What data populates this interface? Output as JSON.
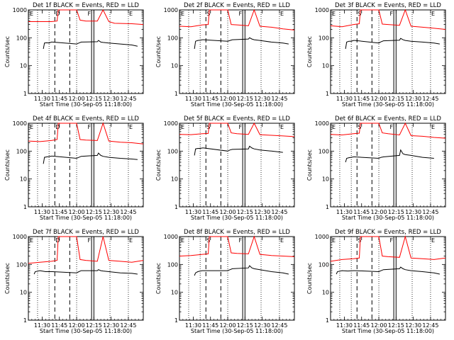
{
  "figure": {
    "xlabel": "Start Time (30-Sep-05 11:18:00)",
    "ylabel": "Counts/sec",
    "x_tick_labels": [
      "11:30",
      "11:45",
      "12:00",
      "12:15",
      "12:30",
      "12:45"
    ],
    "y_tick_labels": [
      "1",
      "10",
      "100",
      "1000"
    ],
    "event_labels": {
      "first_marker": "D",
      "second_marker": "F",
      "third_marker": "E",
      "start_marker": "E"
    },
    "colors": {
      "events": "#000000",
      "lld": "#ff0000"
    }
  },
  "chart_data": [
    {
      "type": "line",
      "title": "Det 1f BLACK = Events, RED = LLD",
      "detector": "1f",
      "first_marker": "D",
      "xlim_minutes": [
        0,
        100
      ],
      "ylim": [
        1,
        1000
      ],
      "yscale": "log",
      "series": [
        {
          "name": "LLD",
          "color": "#ff0000",
          "x": [
            0,
            20,
            25,
            26,
            28,
            42,
            45,
            50,
            60,
            65,
            70,
            75,
            90,
            100
          ],
          "values": [
            380,
            380,
            400,
            1000,
            1000,
            1000,
            430,
            400,
            400,
            1000,
            380,
            330,
            320,
            300
          ]
        },
        {
          "name": "Events",
          "color": "#000000",
          "x": [
            13,
            14,
            16,
            18,
            20,
            21,
            42,
            44,
            46,
            60,
            61,
            63,
            65,
            70,
            80,
            90,
            95
          ],
          "values": [
            40,
            65,
            66,
            65,
            70,
            70,
            60,
            65,
            70,
            72,
            80,
            70,
            68,
            65,
            60,
            55,
            50
          ]
        }
      ],
      "vlines_dotted": [
        8,
        18,
        42,
        71,
        87
      ],
      "vlines_dashed": [
        23,
        36
      ],
      "vlines_solid": [
        55,
        57
      ]
    },
    {
      "type": "line",
      "title": "Det 2f BLACK = Events, RED = LLD",
      "detector": "2f",
      "first_marker": "S",
      "xlim_minutes": [
        0,
        100
      ],
      "ylim": [
        1,
        1000
      ],
      "yscale": "log",
      "series": [
        {
          "name": "LLD",
          "color": "#ff0000",
          "x": [
            0,
            10,
            20,
            25,
            26,
            28,
            42,
            45,
            50,
            60,
            65,
            70,
            80,
            90,
            100
          ],
          "values": [
            260,
            250,
            290,
            300,
            1000,
            1000,
            1000,
            300,
            290,
            270,
            1000,
            260,
            240,
            210,
            190
          ]
        },
        {
          "name": "Events",
          "color": "#000000",
          "x": [
            13,
            14,
            16,
            18,
            20,
            21,
            42,
            44,
            46,
            60,
            61,
            63,
            65,
            70,
            80,
            90,
            95
          ],
          "values": [
            40,
            75,
            80,
            82,
            85,
            85,
            75,
            80,
            85,
            90,
            100,
            90,
            85,
            80,
            70,
            65,
            60
          ]
        }
      ],
      "vlines_dotted": [
        8,
        18,
        42,
        71,
        87
      ],
      "vlines_dashed": [
        23,
        36
      ],
      "vlines_solid": [
        55,
        57
      ]
    },
    {
      "type": "line",
      "title": "Det 3f BLACK = Events, RED = LLD",
      "detector": "3f",
      "first_marker": "S",
      "xlim_minutes": [
        0,
        100
      ],
      "ylim": [
        1,
        1000
      ],
      "yscale": "log",
      "series": [
        {
          "name": "LLD",
          "color": "#ff0000",
          "x": [
            0,
            10,
            20,
            25,
            26,
            28,
            42,
            45,
            50,
            60,
            65,
            70,
            80,
            90,
            100
          ],
          "values": [
            270,
            250,
            300,
            320,
            1000,
            1000,
            1000,
            310,
            300,
            280,
            1000,
            260,
            240,
            220,
            200
          ]
        },
        {
          "name": "Events",
          "color": "#000000",
          "x": [
            13,
            14,
            16,
            18,
            20,
            21,
            42,
            44,
            46,
            60,
            61,
            63,
            65,
            70,
            80,
            90,
            95
          ],
          "values": [
            40,
            70,
            75,
            75,
            80,
            80,
            65,
            72,
            78,
            82,
            95,
            85,
            80,
            75,
            70,
            65,
            60
          ]
        }
      ],
      "vlines_dotted": [
        8,
        18,
        42,
        71,
        87
      ],
      "vlines_dashed": [
        23,
        36
      ],
      "vlines_solid": [
        55,
        57
      ]
    },
    {
      "type": "line",
      "title": "Det 4f BLACK = Events, RED = LLD",
      "detector": "4f",
      "first_marker": "D",
      "xlim_minutes": [
        0,
        100
      ],
      "ylim": [
        1,
        1000
      ],
      "yscale": "log",
      "series": [
        {
          "name": "LLD",
          "color": "#ff0000",
          "x": [
            0,
            10,
            20,
            25,
            26,
            28,
            42,
            45,
            50,
            60,
            65,
            70,
            80,
            90,
            100
          ],
          "values": [
            230,
            220,
            240,
            260,
            1000,
            1000,
            1000,
            260,
            250,
            240,
            1000,
            230,
            210,
            200,
            180
          ]
        },
        {
          "name": "Events",
          "color": "#000000",
          "x": [
            13,
            14,
            16,
            18,
            20,
            21,
            42,
            44,
            46,
            60,
            61,
            63,
            65,
            70,
            80,
            90,
            95
          ],
          "values": [
            35,
            60,
            62,
            64,
            66,
            66,
            55,
            60,
            65,
            70,
            85,
            70,
            65,
            60,
            55,
            52,
            50
          ]
        }
      ],
      "vlines_dotted": [
        8,
        18,
        42,
        71,
        87
      ],
      "vlines_dashed": [
        23,
        36
      ],
      "vlines_solid": [
        55,
        57
      ]
    },
    {
      "type": "line",
      "title": "Det 5f BLACK = Events, RED = LLD",
      "detector": "5f",
      "first_marker": "S",
      "xlim_minutes": [
        0,
        100
      ],
      "ylim": [
        1,
        1000
      ],
      "yscale": "log",
      "series": [
        {
          "name": "LLD",
          "color": "#ff0000",
          "x": [
            0,
            10,
            20,
            25,
            26,
            28,
            42,
            45,
            50,
            60,
            65,
            70,
            80,
            90,
            100
          ],
          "values": [
            400,
            390,
            420,
            430,
            1000,
            1000,
            1000,
            450,
            420,
            400,
            1000,
            390,
            370,
            350,
            330
          ]
        },
        {
          "name": "Events",
          "color": "#000000",
          "x": [
            13,
            14,
            16,
            18,
            20,
            21,
            42,
            44,
            46,
            60,
            61,
            63,
            65,
            70,
            80,
            90
          ],
          "values": [
            70,
            120,
            125,
            125,
            130,
            130,
            100,
            110,
            115,
            120,
            150,
            130,
            120,
            110,
            100,
            90
          ]
        }
      ],
      "vlines_dotted": [
        8,
        18,
        42,
        71,
        87
      ],
      "vlines_dashed": [
        23,
        36
      ],
      "vlines_solid": [
        55,
        57
      ]
    },
    {
      "type": "line",
      "title": "Det 6f BLACK = Events, RED = LLD",
      "detector": "6f",
      "first_marker": "S",
      "xlim_minutes": [
        0,
        100
      ],
      "ylim": [
        1,
        1000
      ],
      "yscale": "log",
      "series": [
        {
          "name": "LLD",
          "color": "#ff0000",
          "x": [
            0,
            10,
            20,
            25,
            26,
            28,
            42,
            45,
            50,
            60,
            65,
            70,
            80,
            90,
            100
          ],
          "values": [
            400,
            380,
            420,
            440,
            1000,
            1000,
            1000,
            450,
            420,
            380,
            1000,
            360,
            340,
            310,
            290
          ]
        },
        {
          "name": "Events",
          "color": "#000000",
          "x": [
            13,
            14,
            16,
            18,
            20,
            21,
            42,
            44,
            46,
            60,
            61,
            63,
            65,
            70,
            80,
            90
          ],
          "values": [
            40,
            55,
            58,
            60,
            62,
            62,
            55,
            60,
            62,
            70,
            110,
            80,
            75,
            70,
            60,
            55
          ]
        }
      ],
      "vlines_dotted": [
        8,
        18,
        42,
        71,
        87
      ],
      "vlines_dashed": [
        23,
        36
      ],
      "vlines_solid": [
        55,
        57
      ]
    },
    {
      "type": "line",
      "title": "Det 7f BLACK = Events, RED = LLD",
      "detector": "7f",
      "first_marker": "D",
      "xlim_minutes": [
        0,
        100
      ],
      "ylim": [
        1,
        1000
      ],
      "yscale": "log",
      "series": [
        {
          "name": "LLD",
          "color": "#ff0000",
          "x": [
            0,
            10,
            20,
            25,
            26,
            28,
            42,
            45,
            50,
            60,
            65,
            70,
            80,
            90,
            100
          ],
          "values": [
            110,
            120,
            130,
            140,
            1000,
            1000,
            1000,
            150,
            140,
            130,
            1000,
            140,
            130,
            120,
            140
          ]
        },
        {
          "name": "Events",
          "color": "#000000",
          "x": [
            5,
            6,
            10,
            15,
            20,
            21,
            42,
            44,
            46,
            60,
            61,
            63,
            65,
            70,
            80,
            90,
            95
          ],
          "values": [
            45,
            55,
            60,
            55,
            55,
            55,
            50,
            55,
            60,
            60,
            65,
            60,
            58,
            55,
            50,
            48,
            45
          ]
        }
      ],
      "vlines_dotted": [
        8,
        18,
        42,
        71,
        87
      ],
      "vlines_dashed": [
        23,
        36
      ],
      "vlines_solid": [
        55,
        57
      ]
    },
    {
      "type": "line",
      "title": "Det 8f BLACK = Events, RED = LLD",
      "detector": "8f",
      "first_marker": "S",
      "xlim_minutes": [
        0,
        100
      ],
      "ylim": [
        1,
        1000
      ],
      "yscale": "log",
      "series": [
        {
          "name": "LLD",
          "color": "#ff0000",
          "x": [
            0,
            10,
            20,
            25,
            26,
            28,
            42,
            45,
            50,
            60,
            65,
            70,
            80,
            90,
            100
          ],
          "values": [
            200,
            210,
            230,
            240,
            1000,
            1000,
            1000,
            260,
            250,
            240,
            1000,
            230,
            210,
            200,
            190
          ]
        },
        {
          "name": "Events",
          "color": "#000000",
          "x": [
            13,
            14,
            16,
            18,
            20,
            21,
            42,
            44,
            46,
            60,
            61,
            63,
            65,
            70,
            80,
            90,
            95
          ],
          "values": [
            40,
            50,
            55,
            58,
            60,
            60,
            60,
            65,
            70,
            75,
            90,
            75,
            70,
            65,
            55,
            50,
            45
          ]
        }
      ],
      "vlines_dotted": [
        8,
        18,
        42,
        71,
        87
      ],
      "vlines_dashed": [
        23,
        36
      ],
      "vlines_solid": [
        55,
        57
      ]
    },
    {
      "type": "line",
      "title": "Det 9f BLACK = Events, RED = LLD",
      "detector": "9f",
      "first_marker": "S",
      "xlim_minutes": [
        0,
        100
      ],
      "ylim": [
        1,
        1000
      ],
      "yscale": "log",
      "series": [
        {
          "name": "LLD",
          "color": "#ff0000",
          "x": [
            0,
            10,
            20,
            25,
            26,
            28,
            42,
            45,
            50,
            60,
            65,
            70,
            80,
            90,
            100
          ],
          "values": [
            130,
            150,
            160,
            170,
            1000,
            1000,
            1000,
            200,
            190,
            180,
            1000,
            170,
            160,
            150,
            170
          ]
        },
        {
          "name": "Events",
          "color": "#000000",
          "x": [
            5,
            6,
            10,
            15,
            20,
            21,
            42,
            44,
            46,
            60,
            61,
            63,
            65,
            70,
            80,
            90,
            95
          ],
          "values": [
            45,
            55,
            60,
            58,
            60,
            60,
            55,
            60,
            65,
            70,
            80,
            70,
            65,
            60,
            55,
            50,
            45
          ]
        }
      ],
      "vlines_dotted": [
        8,
        18,
        42,
        71,
        87
      ],
      "vlines_dashed": [
        23,
        36
      ],
      "vlines_solid": [
        55,
        57
      ]
    }
  ]
}
